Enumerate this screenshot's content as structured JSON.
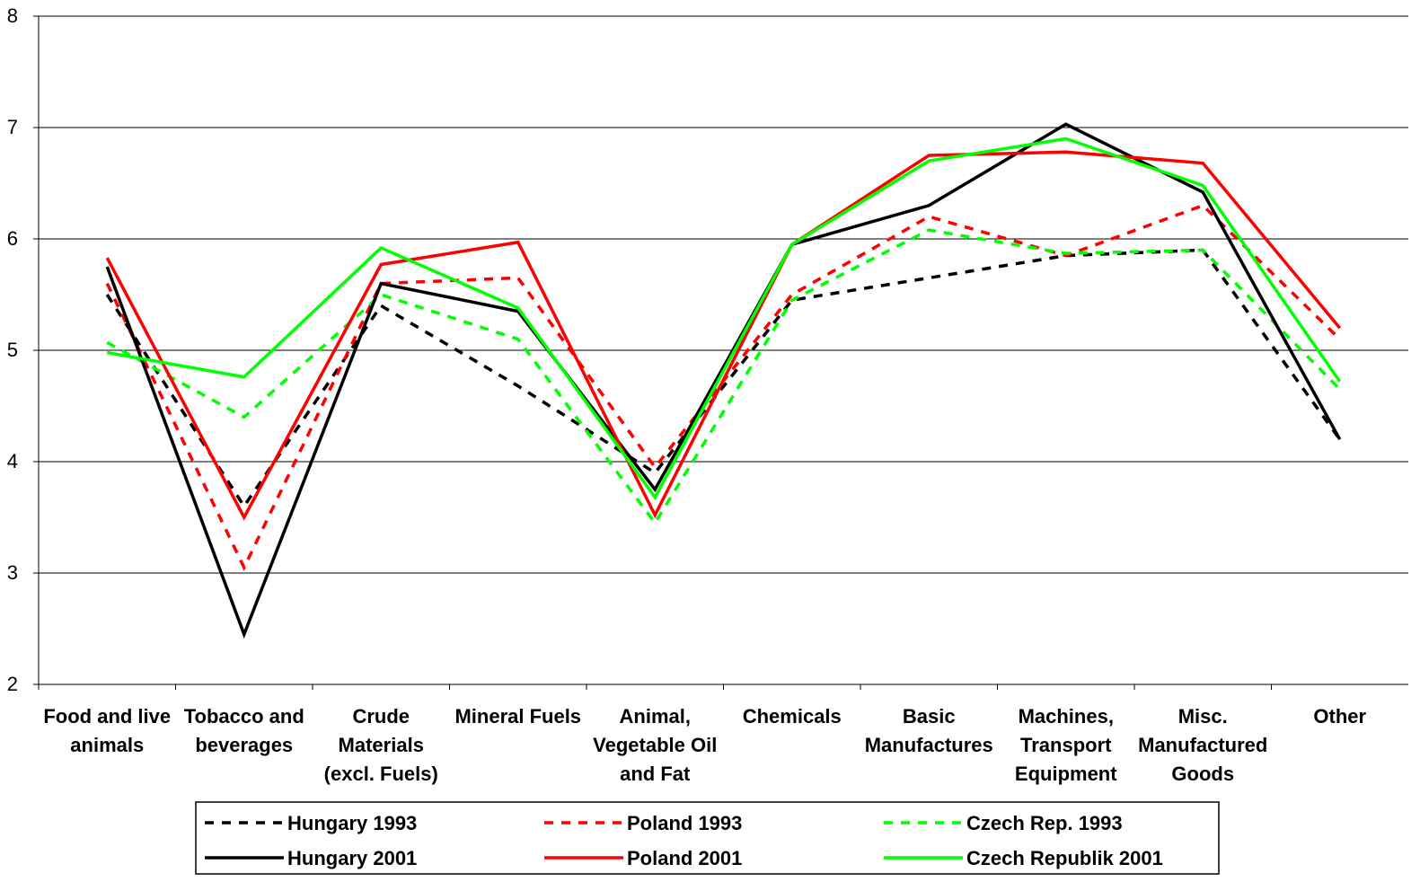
{
  "chart_data": {
    "type": "line",
    "categories": [
      "Food and live\nanimals",
      "Tobacco and\nbeverages",
      "Crude\nMaterials\n(excl. Fuels)",
      "Mineral Fuels",
      "Animal,\nVegetable Oil\nand Fat",
      "Chemicals",
      "Basic\nManufactures",
      "Machines,\nTransport\nEquipment",
      "Misc.\nManufactured\nGoods",
      "Other"
    ],
    "series": [
      {
        "name": "Hungary 1993",
        "color": "#000000",
        "dashed": true,
        "values": [
          5.5,
          3.6,
          5.4,
          4.68,
          3.9,
          5.45,
          5.65,
          5.85,
          5.9,
          4.2
        ]
      },
      {
        "name": "Poland 1993",
        "color": "#ff0000",
        "dashed": true,
        "values": [
          5.6,
          3.05,
          5.6,
          5.65,
          3.95,
          5.5,
          6.2,
          5.85,
          6.3,
          5.1
        ]
      },
      {
        "name": "Czech Rep. 1993",
        "color": "#00ff00",
        "dashed": true,
        "values": [
          5.07,
          4.4,
          5.5,
          5.1,
          3.45,
          5.45,
          6.08,
          5.87,
          5.9,
          4.65
        ]
      },
      {
        "name": "Hungary 2001",
        "color": "#000000",
        "dashed": false,
        "values": [
          5.75,
          2.45,
          5.6,
          5.35,
          3.75,
          5.95,
          6.3,
          7.03,
          6.42,
          4.2
        ]
      },
      {
        "name": "Poland 2001",
        "color": "#ff0000",
        "dashed": false,
        "values": [
          5.83,
          3.5,
          5.77,
          5.97,
          3.52,
          5.95,
          6.75,
          6.78,
          6.68,
          5.2
        ]
      },
      {
        "name": "Czech Republik 2001",
        "color": "#00ff00",
        "dashed": false,
        "values": [
          4.98,
          4.76,
          5.92,
          5.38,
          3.68,
          5.95,
          6.7,
          6.9,
          6.48,
          4.72
        ]
      }
    ],
    "ylim": [
      2,
      8
    ],
    "yticks": [
      2,
      3,
      4,
      5,
      6,
      7,
      8
    ],
    "grid": true
  }
}
